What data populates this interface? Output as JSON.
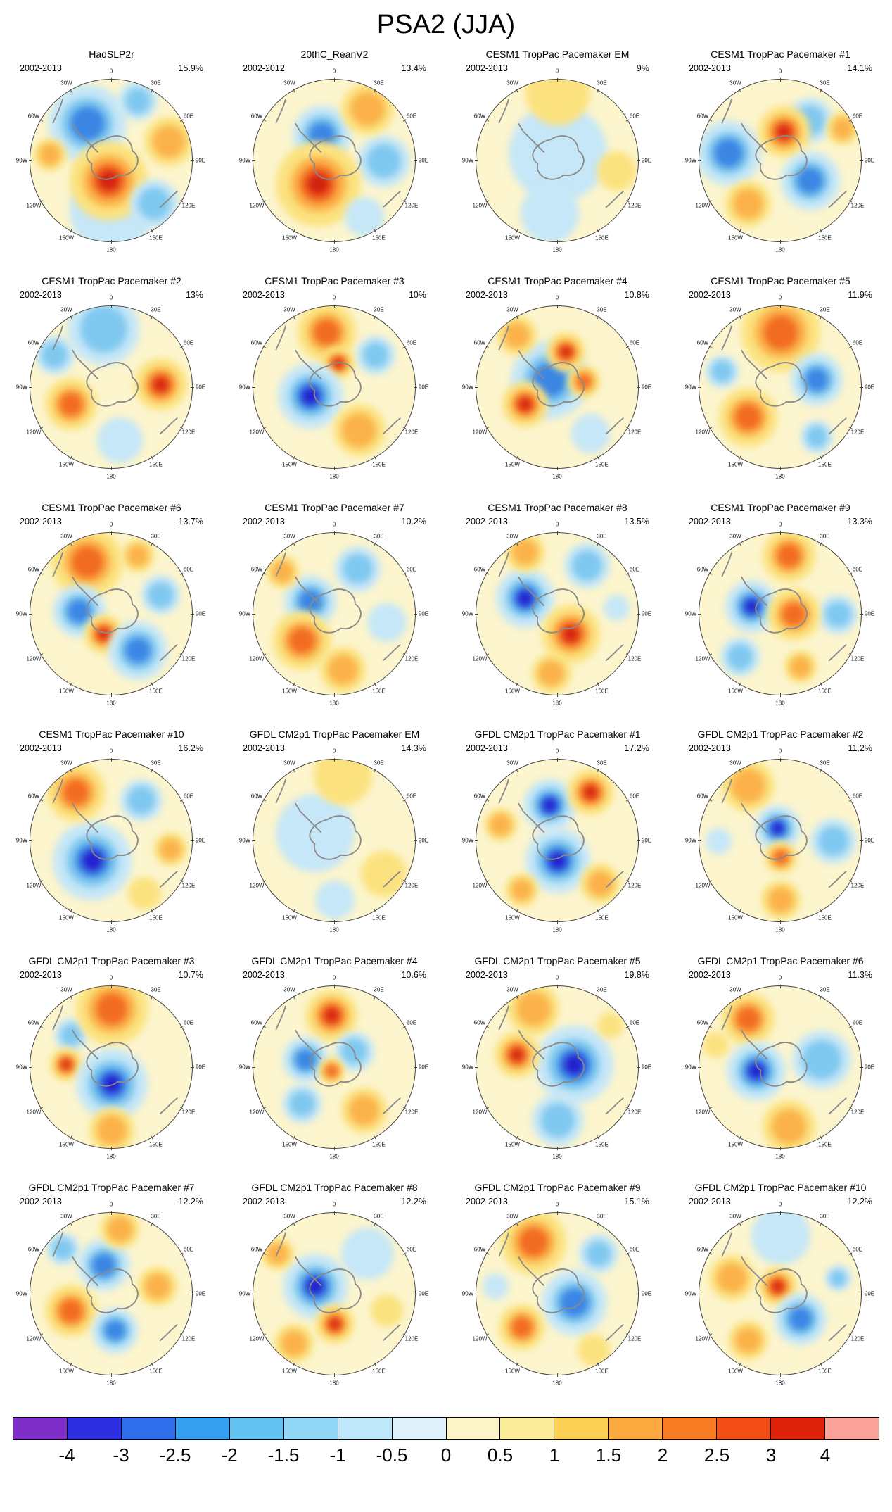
{
  "title": "PSA2 (JJA)",
  "chart_data": {
    "type": "heatmap",
    "description": "6x4 grid of south-polar stereographic SLP anomaly regression maps (PSA2 pattern, JJA) with shared colorbar",
    "lon_ticks": [
      "0",
      "30E",
      "60E",
      "90E",
      "120E",
      "150E",
      "180",
      "150W",
      "120W",
      "90W",
      "60W",
      "30W"
    ],
    "palette": {
      "w": [
        "#FBE27F",
        "#FBB24A",
        "#F26B22",
        "#D32310"
      ],
      "c": [
        "#C6E7F7",
        "#7FC8EF",
        "#3C86E4",
        "#2321CE"
      ]
    },
    "panels": [
      {
        "title": "HadSLP2r",
        "period": "2002-2013",
        "variance": "15.9%",
        "pattern": [
          [
            50,
            80,
            26,
            "c",
            1
          ],
          [
            35,
            27,
            24,
            "c",
            3
          ],
          [
            66,
            13,
            12,
            "c",
            2
          ],
          [
            85,
            38,
            15,
            "w",
            2
          ],
          [
            48,
            62,
            24,
            "w",
            4
          ],
          [
            76,
            76,
            15,
            "c",
            2
          ],
          [
            12,
            46,
            10,
            "w",
            2
          ]
        ]
      },
      {
        "title": "20thC_ReanV2",
        "period": "2002-2012",
        "variance": "13.4%",
        "pattern": [
          [
            80,
            50,
            16,
            "c",
            2
          ],
          [
            42,
            34,
            18,
            "c",
            3
          ],
          [
            40,
            64,
            26,
            "w",
            4
          ],
          [
            70,
            18,
            16,
            "w",
            2
          ],
          [
            68,
            84,
            12,
            "c",
            1
          ]
        ]
      },
      {
        "title": "CESM1 TropPac Pacemaker EM",
        "period": "2002-2013",
        "variance": "9%",
        "pattern": [
          [
            50,
            45,
            30,
            "c",
            1
          ],
          [
            50,
            8,
            20,
            "w",
            1
          ],
          [
            86,
            56,
            12,
            "w",
            1
          ],
          [
            45,
            82,
            18,
            "c",
            1
          ]
        ]
      },
      {
        "title": "CESM1 TropPac Pacemaker #1",
        "period": "2002-2013",
        "variance": "14.1%",
        "pattern": [
          [
            18,
            45,
            20,
            "c",
            3
          ],
          [
            68,
            25,
            14,
            "c",
            2
          ],
          [
            52,
            32,
            16,
            "w",
            4
          ],
          [
            88,
            30,
            10,
            "w",
            2
          ],
          [
            68,
            62,
            18,
            "c",
            3
          ],
          [
            30,
            76,
            14,
            "w",
            2
          ]
        ]
      },
      {
        "title": "CESM1 TropPac Pacemaker #2",
        "period": "2002-2013",
        "variance": "13%",
        "pattern": [
          [
            45,
            14,
            22,
            "c",
            2
          ],
          [
            15,
            30,
            12,
            "c",
            2
          ],
          [
            80,
            48,
            16,
            "w",
            4
          ],
          [
            25,
            60,
            16,
            "w",
            3
          ],
          [
            55,
            82,
            14,
            "c",
            1
          ]
        ]
      },
      {
        "title": "CESM1 TropPac Pacemaker #3",
        "period": "2002-2013",
        "variance": "10%",
        "pattern": [
          [
            75,
            30,
            12,
            "c",
            2
          ],
          [
            45,
            16,
            18,
            "w",
            3
          ],
          [
            52,
            35,
            10,
            "w",
            4
          ],
          [
            35,
            55,
            20,
            "c",
            4
          ],
          [
            65,
            76,
            16,
            "w",
            2
          ]
        ]
      },
      {
        "title": "CESM1 TropPac Pacemaker #4",
        "period": "2002-2013",
        "variance": "10.8%",
        "pattern": [
          [
            45,
            45,
            24,
            "c",
            3
          ],
          [
            55,
            28,
            12,
            "w",
            4
          ],
          [
            66,
            46,
            10,
            "w",
            3
          ],
          [
            30,
            60,
            14,
            "w",
            4
          ],
          [
            25,
            18,
            12,
            "w",
            2
          ],
          [
            70,
            78,
            12,
            "c",
            1
          ]
        ]
      },
      {
        "title": "CESM1 TropPac Pacemaker #5",
        "period": "2002-2013",
        "variance": "11.9%",
        "pattern": [
          [
            50,
            16,
            24,
            "w",
            3
          ],
          [
            72,
            45,
            16,
            "c",
            3
          ],
          [
            30,
            68,
            18,
            "w",
            3
          ],
          [
            14,
            40,
            10,
            "c",
            2
          ],
          [
            72,
            80,
            10,
            "c",
            2
          ]
        ]
      },
      {
        "title": "CESM1 TropPac Pacemaker #6",
        "period": "2002-2013",
        "variance": "13.7%",
        "pattern": [
          [
            35,
            18,
            22,
            "w",
            3
          ],
          [
            30,
            48,
            16,
            "c",
            3
          ],
          [
            45,
            62,
            12,
            "w",
            4
          ],
          [
            66,
            72,
            18,
            "c",
            3
          ],
          [
            80,
            38,
            12,
            "c",
            2
          ],
          [
            66,
            14,
            10,
            "w",
            2
          ]
        ]
      },
      {
        "title": "CESM1 TropPac Pacemaker #7",
        "period": "2002-2013",
        "variance": "10.2%",
        "pattern": [
          [
            82,
            55,
            12,
            "c",
            1
          ],
          [
            35,
            42,
            16,
            "c",
            3
          ],
          [
            30,
            66,
            18,
            "w",
            3
          ],
          [
            64,
            22,
            14,
            "c",
            2
          ],
          [
            55,
            84,
            14,
            "w",
            2
          ],
          [
            18,
            24,
            10,
            "w",
            2
          ]
        ]
      },
      {
        "title": "CESM1 TropPac Pacemaker #8",
        "period": "2002-2013",
        "variance": "13.5%",
        "pattern": [
          [
            30,
            40,
            18,
            "c",
            4
          ],
          [
            58,
            62,
            18,
            "w",
            4
          ],
          [
            68,
            20,
            14,
            "c",
            2
          ],
          [
            30,
            12,
            12,
            "w",
            2
          ],
          [
            46,
            86,
            12,
            "w",
            2
          ],
          [
            86,
            46,
            8,
            "c",
            1
          ]
        ]
      },
      {
        "title": "CESM1 TropPac Pacemaker #9",
        "period": "2002-2013",
        "variance": "13.3%",
        "pattern": [
          [
            85,
            50,
            12,
            "c",
            2
          ],
          [
            32,
            45,
            16,
            "c",
            4
          ],
          [
            58,
            50,
            16,
            "w",
            3
          ],
          [
            55,
            14,
            16,
            "w",
            3
          ],
          [
            25,
            76,
            12,
            "c",
            2
          ],
          [
            62,
            82,
            10,
            "w",
            2
          ]
        ]
      },
      {
        "title": "CESM1 TropPac Pacemaker #10",
        "period": "2002-2013",
        "variance": "16.2%",
        "pattern": [
          [
            68,
            25,
            13,
            "c",
            2
          ],
          [
            38,
            62,
            24,
            "c",
            4
          ],
          [
            28,
            20,
            18,
            "w",
            3
          ],
          [
            86,
            55,
            10,
            "w",
            2
          ],
          [
            70,
            82,
            10,
            "w",
            1
          ]
        ]
      },
      {
        "title": "GFDL CM2p1 TropPac Pacemaker EM",
        "period": "2002-2013",
        "variance": "14.3%",
        "pattern": [
          [
            38,
            45,
            24,
            "c",
            1
          ],
          [
            55,
            10,
            18,
            "w",
            1
          ],
          [
            80,
            70,
            14,
            "w",
            1
          ],
          [
            50,
            86,
            12,
            "c",
            1
          ]
        ]
      },
      {
        "title": "GFDL CM2p1 TropPac Pacemaker #1",
        "period": "2002-2013",
        "variance": "17.2%",
        "pattern": [
          [
            15,
            40,
            10,
            "w",
            2
          ],
          [
            45,
            28,
            16,
            "c",
            4
          ],
          [
            70,
            20,
            14,
            "w",
            4
          ],
          [
            50,
            62,
            20,
            "c",
            4
          ],
          [
            76,
            76,
            12,
            "w",
            2
          ],
          [
            28,
            80,
            10,
            "w",
            2
          ]
        ]
      },
      {
        "title": "GFDL CM2p1 TropPac Pacemaker #2",
        "period": "2002-2013",
        "variance": "11.2%",
        "pattern": [
          [
            30,
            16,
            16,
            "w",
            2
          ],
          [
            82,
            50,
            14,
            "c",
            2
          ],
          [
            48,
            42,
            14,
            "c",
            4
          ],
          [
            50,
            60,
            10,
            "w",
            3
          ],
          [
            50,
            86,
            12,
            "w",
            2
          ],
          [
            12,
            50,
            8,
            "c",
            1
          ]
        ]
      },
      {
        "title": "GFDL CM2p1 TropPac Pacemaker #3",
        "period": "2002-2013",
        "variance": "10.7%",
        "pattern": [
          [
            25,
            30,
            10,
            "c",
            2
          ],
          [
            50,
            14,
            22,
            "w",
            3
          ],
          [
            22,
            48,
            10,
            "w",
            4
          ],
          [
            50,
            60,
            22,
            "c",
            4
          ],
          [
            50,
            88,
            14,
            "w",
            2
          ]
        ]
      },
      {
        "title": "GFDL CM2p1 TropPac Pacemaker #4",
        "period": "2002-2013",
        "variance": "10.6%",
        "pattern": [
          [
            48,
            18,
            16,
            "w",
            4
          ],
          [
            32,
            45,
            14,
            "c",
            3
          ],
          [
            62,
            40,
            12,
            "c",
            2
          ],
          [
            48,
            52,
            8,
            "w",
            3
          ],
          [
            30,
            72,
            12,
            "c",
            2
          ],
          [
            68,
            76,
            14,
            "w",
            2
          ]
        ]
      },
      {
        "title": "GFDL CM2p1 TropPac Pacemaker #5",
        "period": "2002-2013",
        "variance": "19.8%",
        "pattern": [
          [
            35,
            14,
            16,
            "w",
            2
          ],
          [
            60,
            48,
            24,
            "c",
            4
          ],
          [
            25,
            42,
            14,
            "w",
            4
          ],
          [
            50,
            82,
            16,
            "c",
            2
          ],
          [
            82,
            24,
            8,
            "w",
            1
          ]
        ]
      },
      {
        "title": "GFDL CM2p1 TropPac Pacemaker #6",
        "period": "2002-2013",
        "variance": "11.3%",
        "pattern": [
          [
            75,
            45,
            18,
            "c",
            2
          ],
          [
            30,
            20,
            16,
            "w",
            3
          ],
          [
            35,
            52,
            18,
            "c",
            4
          ],
          [
            55,
            86,
            16,
            "w",
            2
          ],
          [
            10,
            36,
            8,
            "w",
            1
          ]
        ]
      },
      {
        "title": "GFDL CM2p1 TropPac Pacemaker #7",
        "period": "2002-2013",
        "variance": "12.2%",
        "pattern": [
          [
            20,
            22,
            10,
            "c",
            2
          ],
          [
            45,
            32,
            16,
            "c",
            3
          ],
          [
            25,
            60,
            16,
            "w",
            3
          ],
          [
            52,
            72,
            14,
            "c",
            3
          ],
          [
            78,
            45,
            12,
            "w",
            2
          ],
          [
            55,
            10,
            12,
            "w",
            2
          ]
        ]
      },
      {
        "title": "GFDL CM2p1 TropPac Pacemaker #8",
        "period": "2002-2013",
        "variance": "12.2%",
        "pattern": [
          [
            70,
            25,
            16,
            "c",
            1
          ],
          [
            38,
            45,
            20,
            "c",
            4
          ],
          [
            50,
            68,
            12,
            "w",
            4
          ],
          [
            25,
            80,
            12,
            "w",
            2
          ],
          [
            15,
            25,
            10,
            "w",
            2
          ],
          [
            82,
            60,
            10,
            "w",
            1
          ]
        ]
      },
      {
        "title": "GFDL CM2p1 TropPac Pacemaker #9",
        "period": "2002-2013",
        "variance": "15.1%",
        "pattern": [
          [
            12,
            45,
            8,
            "c",
            1
          ],
          [
            35,
            18,
            20,
            "w",
            3
          ],
          [
            60,
            55,
            20,
            "c",
            3
          ],
          [
            28,
            70,
            14,
            "w",
            3
          ],
          [
            75,
            25,
            12,
            "c",
            2
          ],
          [
            72,
            84,
            10,
            "w",
            1
          ]
        ]
      },
      {
        "title": "GFDL CM2p1 TropPac Pacemaker #10",
        "period": "2002-2013",
        "variance": "12.2%",
        "pattern": [
          [
            50,
            14,
            18,
            "c",
            1
          ],
          [
            48,
            45,
            12,
            "w",
            4
          ],
          [
            62,
            65,
            16,
            "c",
            3
          ],
          [
            20,
            40,
            14,
            "w",
            2
          ],
          [
            30,
            78,
            12,
            "w",
            2
          ],
          [
            85,
            40,
            8,
            "c",
            2
          ]
        ]
      }
    ],
    "colorbar": {
      "colors": [
        "#7F2DC8",
        "#2F2FE2",
        "#2F6FEC",
        "#35A0F0",
        "#62C2F2",
        "#93D7F6",
        "#BEE7FA",
        "#DFF2FB",
        "#FCF5C9",
        "#FBEC9A",
        "#FBD052",
        "#FCA93F",
        "#F97C24",
        "#F24D15",
        "#DE2209",
        "#FBA29B"
      ],
      "tick_labels": [
        "-4",
        "-3",
        "-2.5",
        "-2",
        "-1.5",
        "-1",
        "-0.5",
        "0",
        "0.5",
        "1",
        "1.5",
        "2",
        "2.5",
        "3",
        "4"
      ]
    }
  }
}
